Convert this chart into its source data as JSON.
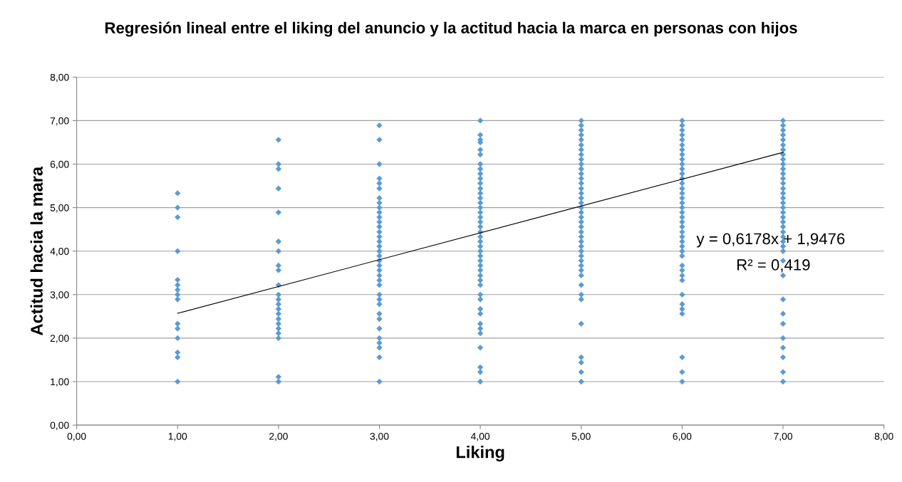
{
  "chart_data": {
    "type": "scatter",
    "title": "Regresión lineal entre el liking del anuncio y la actitud hacia la marca en personas con hijos",
    "xlabel": "Liking",
    "ylabel": "Actitud hacia la mara",
    "xlim": [
      0,
      8
    ],
    "ylim": [
      0,
      8
    ],
    "xticks": [
      {
        "value": 0,
        "label": "0,00"
      },
      {
        "value": 1,
        "label": "1,00"
      },
      {
        "value": 2,
        "label": "2,00"
      },
      {
        "value": 3,
        "label": "3,00"
      },
      {
        "value": 4,
        "label": "4,00"
      },
      {
        "value": 5,
        "label": "5,00"
      },
      {
        "value": 6,
        "label": "6,00"
      },
      {
        "value": 7,
        "label": "7,00"
      },
      {
        "value": 8,
        "label": "8,00"
      }
    ],
    "yticks": [
      {
        "value": 0,
        "label": "0,00"
      },
      {
        "value": 1,
        "label": "1,00"
      },
      {
        "value": 2,
        "label": "2,00"
      },
      {
        "value": 3,
        "label": "3,00"
      },
      {
        "value": 4,
        "label": "4,00"
      },
      {
        "value": 5,
        "label": "5,00"
      },
      {
        "value": 6,
        "label": "6,00"
      },
      {
        "value": 7,
        "label": "7,00"
      },
      {
        "value": 8,
        "label": "8,00"
      }
    ],
    "grid": "y",
    "marker": "diamond",
    "annotations": [
      "y = 0,6178x + 1,9476",
      "R² = 0,419"
    ],
    "series": [
      {
        "color": "#5b9bd5",
        "x": [
          1,
          1,
          1,
          1,
          1,
          1,
          1,
          1,
          1,
          1,
          1,
          1,
          1,
          1,
          1
        ],
        "values": [
          5.33,
          5.0,
          4.78,
          4.0,
          3.34,
          3.22,
          3.11,
          3.0,
          2.89,
          2.33,
          2.22,
          2.0,
          1.67,
          1.56,
          1.0
        ]
      },
      {
        "color": "#5b9bd5",
        "x": [
          2,
          2,
          2,
          2,
          2,
          2,
          2,
          2,
          2,
          2,
          2,
          2,
          2,
          2,
          2,
          2,
          2,
          2,
          2,
          2,
          2,
          2
        ],
        "values": [
          6.56,
          6.0,
          5.89,
          5.44,
          4.89,
          4.22,
          4.0,
          3.67,
          3.56,
          3.22,
          3.0,
          2.89,
          2.78,
          2.67,
          2.56,
          2.44,
          2.33,
          2.22,
          2.11,
          2.0,
          1.11,
          1.0
        ]
      },
      {
        "color": "#5b9bd5",
        "x": [
          3,
          3,
          3,
          3,
          3,
          3,
          3,
          3,
          3,
          3,
          3,
          3,
          3,
          3,
          3,
          3,
          3,
          3,
          3,
          3,
          3,
          3,
          3,
          3,
          3,
          3,
          3,
          3,
          3,
          3,
          3,
          3,
          3,
          3,
          3,
          3
        ],
        "values": [
          6.89,
          6.56,
          6.0,
          5.67,
          5.56,
          5.44,
          5.22,
          5.11,
          5.0,
          4.89,
          4.78,
          4.67,
          4.56,
          4.44,
          4.33,
          4.22,
          4.11,
          4.0,
          3.89,
          3.78,
          3.67,
          3.56,
          3.44,
          3.33,
          3.22,
          3.0,
          2.89,
          2.78,
          2.56,
          2.44,
          2.22,
          2.0,
          1.89,
          1.78,
          1.56,
          1.0
        ]
      },
      {
        "color": "#5b9bd5",
        "x": [
          4,
          4,
          4,
          4,
          4,
          4,
          4,
          4,
          4,
          4,
          4,
          4,
          4,
          4,
          4,
          4,
          4,
          4,
          4,
          4,
          4,
          4,
          4,
          4,
          4,
          4,
          4,
          4,
          4,
          4,
          4,
          4,
          4,
          4,
          4,
          4,
          4,
          4,
          4,
          4,
          4,
          4,
          4
        ],
        "values": [
          7.0,
          6.67,
          6.56,
          6.5,
          6.33,
          6.22,
          6.0,
          5.89,
          5.78,
          5.67,
          5.56,
          5.44,
          5.33,
          5.22,
          5.11,
          5.0,
          4.89,
          4.78,
          4.67,
          4.56,
          4.44,
          4.33,
          4.22,
          4.11,
          4.0,
          3.89,
          3.78,
          3.67,
          3.56,
          3.44,
          3.33,
          3.22,
          3.0,
          2.89,
          2.67,
          2.56,
          2.33,
          2.22,
          2.11,
          1.78,
          1.33,
          1.22,
          1.0
        ]
      },
      {
        "color": "#5b9bd5",
        "x": [
          5,
          5,
          5,
          5,
          5,
          5,
          5,
          5,
          5,
          5,
          5,
          5,
          5,
          5,
          5,
          5,
          5,
          5,
          5,
          5,
          5,
          5,
          5,
          5,
          5,
          5,
          5,
          5,
          5,
          5,
          5,
          5,
          5,
          5,
          5,
          5,
          5,
          5,
          5,
          5,
          5
        ],
        "values": [
          7.0,
          6.89,
          6.78,
          6.67,
          6.56,
          6.44,
          6.33,
          6.22,
          6.11,
          6.0,
          5.89,
          5.78,
          5.67,
          5.56,
          5.44,
          5.33,
          5.22,
          5.11,
          5.0,
          4.89,
          4.78,
          4.67,
          4.56,
          4.44,
          4.33,
          4.22,
          4.11,
          4.0,
          3.89,
          3.78,
          3.67,
          3.56,
          3.44,
          3.22,
          3.0,
          2.89,
          2.33,
          1.56,
          1.44,
          1.22,
          1.0
        ]
      },
      {
        "color": "#5b9bd5",
        "x": [
          6,
          6,
          6,
          6,
          6,
          6,
          6,
          6,
          6,
          6,
          6,
          6,
          6,
          6,
          6,
          6,
          6,
          6,
          6,
          6,
          6,
          6,
          6,
          6,
          6,
          6,
          6,
          6,
          6,
          6,
          6,
          6,
          6,
          6,
          6,
          6,
          6,
          6,
          6,
          6
        ],
        "values": [
          7.0,
          6.89,
          6.78,
          6.67,
          6.56,
          6.44,
          6.33,
          6.22,
          6.11,
          6.0,
          5.89,
          5.78,
          5.67,
          5.56,
          5.44,
          5.33,
          5.22,
          5.11,
          5.0,
          4.89,
          4.78,
          4.67,
          4.56,
          4.44,
          4.33,
          4.22,
          4.11,
          4.0,
          3.89,
          3.67,
          3.56,
          3.44,
          3.33,
          3.0,
          2.78,
          2.67,
          2.56,
          1.56,
          1.22,
          1.0
        ]
      },
      {
        "color": "#5b9bd5",
        "x": [
          7,
          7,
          7,
          7,
          7,
          7,
          7,
          7,
          7,
          7,
          7,
          7,
          7,
          7,
          7,
          7,
          7,
          7,
          7,
          7,
          7,
          7,
          7,
          7,
          7,
          7,
          7,
          7,
          7,
          7,
          7,
          7,
          7,
          7,
          7,
          7,
          7,
          7
        ],
        "values": [
          7.0,
          6.89,
          6.78,
          6.67,
          6.56,
          6.44,
          6.33,
          6.22,
          6.11,
          6.0,
          5.89,
          5.78,
          5.67,
          5.56,
          5.44,
          5.33,
          5.22,
          5.11,
          5.0,
          4.89,
          4.78,
          4.67,
          4.56,
          4.44,
          4.33,
          4.22,
          4.11,
          4.0,
          3.78,
          3.44,
          2.89,
          2.56,
          2.33,
          2.0,
          1.78,
          1.56,
          1.22,
          1.0
        ]
      },
      {
        "type": "line",
        "color": "#000000",
        "marker": "none",
        "x": [
          1,
          7
        ],
        "values": [
          2.57,
          6.27
        ]
      }
    ]
  }
}
